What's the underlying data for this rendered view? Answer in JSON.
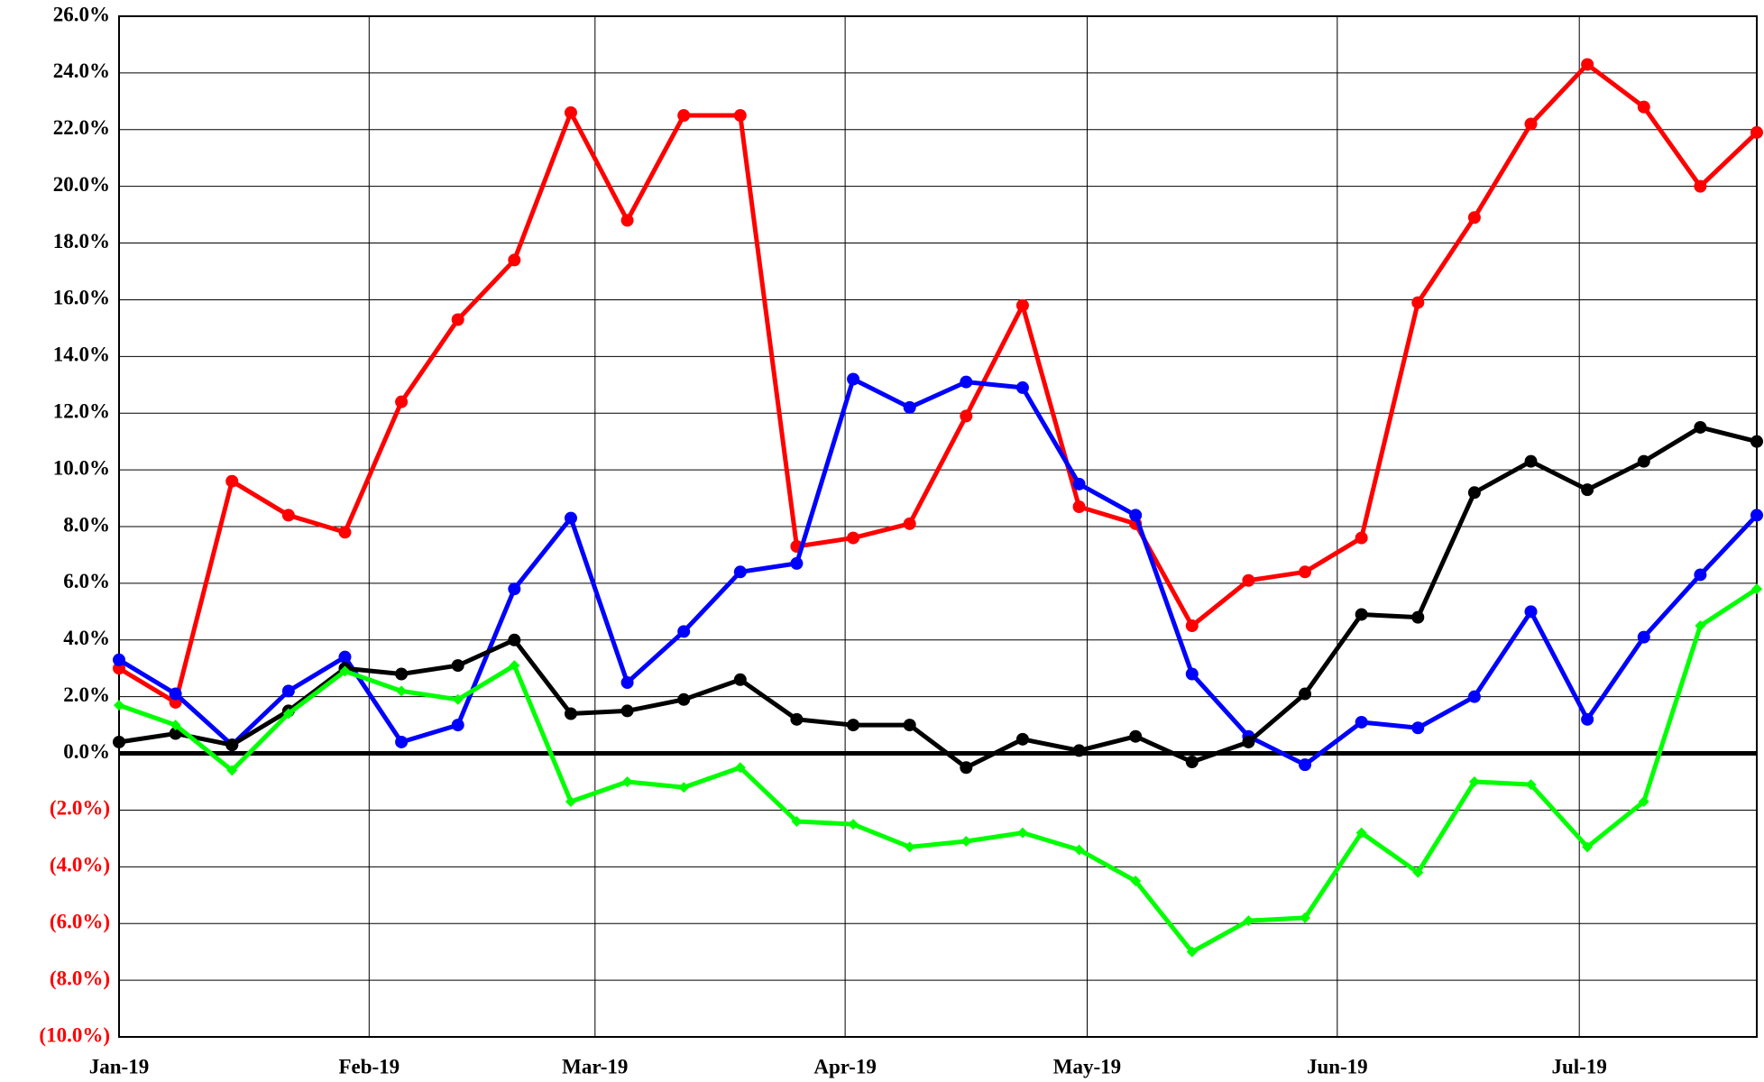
{
  "chart_data": {
    "type": "line",
    "x": [
      0,
      7,
      14,
      21,
      28,
      35,
      42,
      49,
      56,
      63,
      70,
      77,
      84,
      91,
      98,
      105,
      112,
      119,
      126,
      133,
      140,
      147,
      154,
      161,
      168,
      175,
      182,
      189,
      196,
      203
    ],
    "xlim": [
      0,
      203
    ],
    "xticks": [
      {
        "value": 0,
        "label": "Jan-19"
      },
      {
        "value": 31,
        "label": "Feb-19"
      },
      {
        "value": 59,
        "label": "Mar-19"
      },
      {
        "value": 90,
        "label": "Apr-19"
      },
      {
        "value": 120,
        "label": "May-19"
      },
      {
        "value": 151,
        "label": "Jun-19"
      },
      {
        "value": 181,
        "label": "Jul-19"
      }
    ],
    "ylim": [
      -10,
      26
    ],
    "yticks": [
      {
        "value": -10,
        "label": "(10.0%)"
      },
      {
        "value": -8,
        "label": "(8.0%)"
      },
      {
        "value": -6,
        "label": "(6.0%)"
      },
      {
        "value": -4,
        "label": "(4.0%)"
      },
      {
        "value": -2,
        "label": "(2.0%)"
      },
      {
        "value": 0,
        "label": "0.0%"
      },
      {
        "value": 2,
        "label": "2.0%"
      },
      {
        "value": 4,
        "label": "4.0%"
      },
      {
        "value": 6,
        "label": "6.0%"
      },
      {
        "value": 8,
        "label": "8.0%"
      },
      {
        "value": 10,
        "label": "10.0%"
      },
      {
        "value": 12,
        "label": "12.0%"
      },
      {
        "value": 14,
        "label": "14.0%"
      },
      {
        "value": 16,
        "label": "16.0%"
      },
      {
        "value": 18,
        "label": "18.0%"
      },
      {
        "value": 20,
        "label": "20.0%"
      },
      {
        "value": 22,
        "label": "22.0%"
      },
      {
        "value": 24,
        "label": "24.0%"
      },
      {
        "value": 26,
        "label": "26.0%"
      }
    ],
    "grid": true,
    "zero_line": true,
    "negative_label_color": "#ff0000",
    "series": [
      {
        "color": "#ff0000",
        "marker": "circle",
        "values": [
          3.0,
          1.8,
          9.6,
          8.4,
          7.8,
          12.4,
          15.3,
          17.4,
          22.6,
          18.8,
          22.5,
          22.5,
          7.3,
          7.6,
          8.1,
          11.9,
          15.8,
          8.7,
          8.1,
          4.5,
          6.1,
          6.4,
          7.6,
          15.9,
          18.9,
          22.2,
          24.3,
          22.8,
          20.0,
          21.9
        ]
      },
      {
        "color": "#0000ff",
        "marker": "circle",
        "values": [
          3.3,
          2.1,
          0.3,
          2.2,
          3.4,
          0.4,
          1.0,
          5.8,
          8.3,
          2.5,
          4.3,
          6.4,
          6.7,
          13.2,
          12.2,
          13.1,
          12.9,
          9.5,
          8.4,
          2.8,
          0.6,
          -0.4,
          1.1,
          0.9,
          2.0,
          5.0,
          1.2,
          4.1,
          6.3,
          8.4
        ]
      },
      {
        "color": "#000000",
        "marker": "circle",
        "values": [
          0.4,
          0.7,
          0.3,
          1.5,
          3.0,
          2.8,
          3.1,
          4.0,
          1.4,
          1.5,
          1.9,
          2.6,
          1.2,
          1.0,
          1.0,
          -0.5,
          0.5,
          0.1,
          0.6,
          -0.3,
          0.4,
          2.1,
          4.9,
          4.8,
          9.2,
          10.3,
          9.3,
          10.3,
          11.5,
          11.0
        ]
      },
      {
        "color": "#00ff00",
        "marker": "diamond",
        "values": [
          1.7,
          1.0,
          -0.6,
          1.4,
          2.9,
          2.2,
          1.9,
          3.1,
          -1.7,
          -1.0,
          -1.2,
          -0.5,
          -2.4,
          -2.5,
          -3.3,
          -3.1,
          -2.8,
          -3.4,
          -4.5,
          -7.0,
          -5.9,
          -5.8,
          -2.8,
          -4.2,
          -1.0,
          -1.1,
          -3.3,
          -1.7,
          4.5,
          5.8
        ]
      }
    ]
  }
}
